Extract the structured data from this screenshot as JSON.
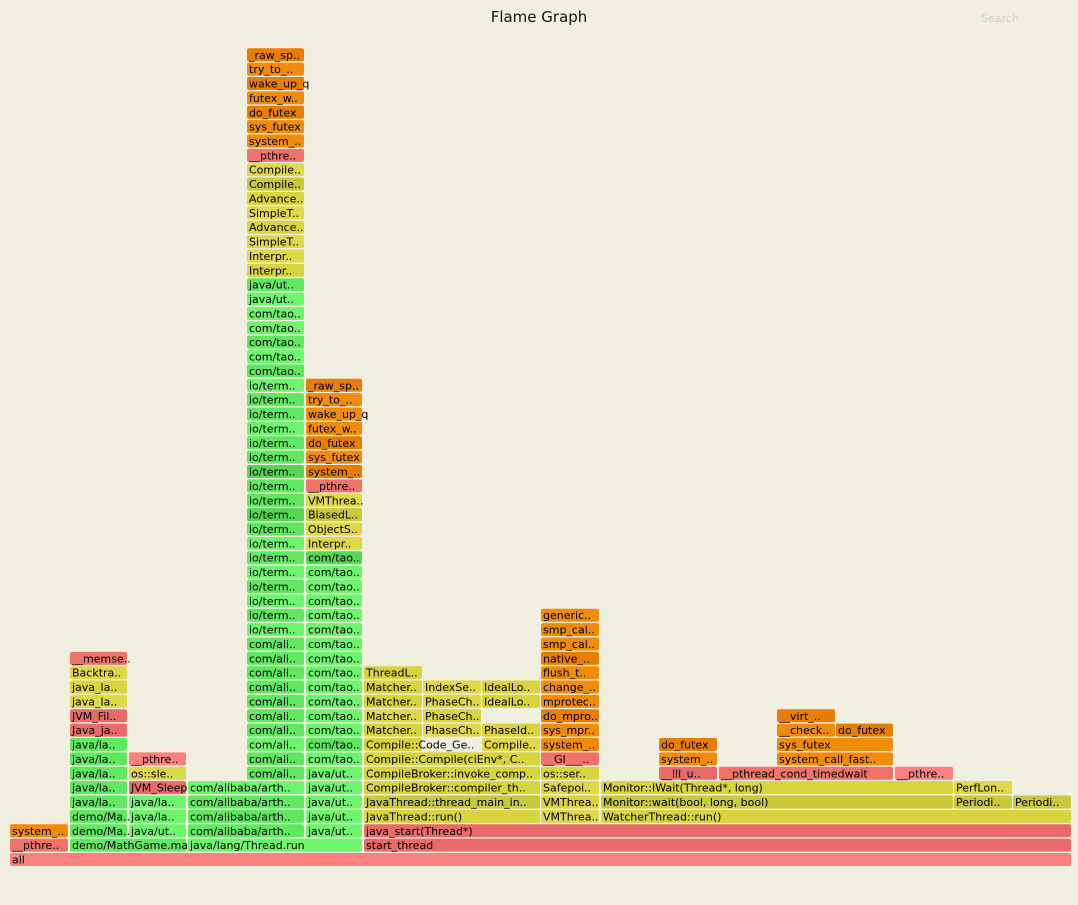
{
  "title": "Flame Graph",
  "search_label": "Search",
  "palette": {
    "red_light": "#fb8080",
    "red": "#e96a6a",
    "salmon": "#f0736a",
    "green": "#60e860",
    "green_light": "#6ef56e",
    "green_mid": "#52d852",
    "yellow": "#d8d43e",
    "yellow_light": "#dfd84a",
    "olive": "#c9c93c",
    "orange": "#f08c0a",
    "orange_dark": "#e77e00"
  },
  "chart_data": {
    "type": "flamegraph",
    "title": "Flame Graph",
    "frames": [
      {
        "label": "all",
        "c": "red_light"
      },
      {
        "label": "__pthre..",
        "c": "salmon"
      },
      {
        "label": "demo/MathGame.ma",
        "c": "green"
      },
      {
        "label": "java/lang/Thread.run",
        "c": "green_light"
      },
      {
        "label": "start_thread",
        "c": "red"
      },
      {
        "label": "system_..",
        "c": "orange"
      },
      {
        "label": "demo/Ma..",
        "c": "green"
      },
      {
        "label": "java/ut..",
        "c": "green_light"
      },
      {
        "label": "com/alibaba/arth..",
        "c": "green"
      },
      {
        "label": "java/ut..",
        "c": "green_light"
      },
      {
        "label": "java_start(Thread*)",
        "c": "red"
      },
      {
        "label": "demo/Ma..",
        "c": "green"
      },
      {
        "label": "java/la..",
        "c": "green_light"
      },
      {
        "label": "com/alibaba/arth..",
        "c": "green"
      },
      {
        "label": "java/ut..",
        "c": "green_light"
      },
      {
        "label": "JavaThread::run()",
        "c": "yellow"
      },
      {
        "label": "VMThrea..",
        "c": "yellow_light"
      },
      {
        "label": "WatcherThread::run()",
        "c": "yellow"
      },
      {
        "label": "java/la..",
        "c": "green"
      },
      {
        "label": "java/la..",
        "c": "green_light"
      },
      {
        "label": "com/alibaba/arth..",
        "c": "green"
      },
      {
        "label": "java/ut..",
        "c": "green_light"
      },
      {
        "label": "JavaThread::thread_main_in..",
        "c": "olive"
      },
      {
        "label": "VMThrea..",
        "c": "yellow"
      },
      {
        "label": "Monitor::wait(bool, long, bool)",
        "c": "olive"
      },
      {
        "label": "Periodi..",
        "c": "olive"
      },
      {
        "label": "Periodi..",
        "c": "olive"
      },
      {
        "label": "java/la..",
        "c": "green"
      },
      {
        "label": "JVM_Sleep",
        "c": "red"
      },
      {
        "label": "com/alibaba/arth..",
        "c": "green_light"
      },
      {
        "label": "java/ut..",
        "c": "green_light"
      },
      {
        "label": "CompileBroker::compiler_th..",
        "c": "yellow"
      },
      {
        "label": "Safepoi..",
        "c": "yellow_light"
      },
      {
        "label": "Monitor::IWait(Thread*, long)",
        "c": "yellow"
      },
      {
        "label": "PerfLon..",
        "c": "yellow_light"
      },
      {
        "label": "java/la..",
        "c": "green"
      },
      {
        "label": "os::sle..",
        "c": "yellow_light"
      },
      {
        "label": "com/ali..",
        "c": "green"
      },
      {
        "label": "java/ut..",
        "c": "green_light"
      },
      {
        "label": "CompileBroker::invoke_comp..",
        "c": "yellow"
      },
      {
        "label": "os::ser..",
        "c": "yellow"
      },
      {
        "label": "__lll_u..",
        "c": "red"
      },
      {
        "label": "__pthread_cond_timedwait",
        "c": "salmon"
      },
      {
        "label": "__pthre..",
        "c": "red_light"
      },
      {
        "label": "java/la..",
        "c": "green"
      },
      {
        "label": "__pthre..",
        "c": "red_light"
      },
      {
        "label": "com/ali..",
        "c": "green"
      },
      {
        "label": "com/tao..",
        "c": "green_light"
      },
      {
        "label": "Compile::Compile(ciEnv*, C..",
        "c": "yellow"
      },
      {
        "label": "__GI___..",
        "c": "salmon"
      },
      {
        "label": "system_..",
        "c": "orange"
      },
      {
        "label": "system_call_fast..",
        "c": "orange"
      },
      {
        "label": "java/la..",
        "c": "green"
      },
      {
        "label": "com/ali..",
        "c": "green_light"
      },
      {
        "label": "com/tao..",
        "c": "green"
      },
      {
        "label": "Compile::Code_Ge..",
        "c": "yellow"
      },
      {
        "label": "Compile..",
        "c": "yellow_light"
      },
      {
        "label": "system_..",
        "c": "orange"
      },
      {
        "label": "do_futex",
        "c": "orange_dark"
      },
      {
        "label": "sys_futex",
        "c": "orange"
      },
      {
        "label": "Java_ja..",
        "c": "red"
      },
      {
        "label": "com/ali..",
        "c": "green"
      },
      {
        "label": "com/tao..",
        "c": "green_light"
      },
      {
        "label": "Matcher..",
        "c": "yellow"
      },
      {
        "label": "PhaseCh..",
        "c": "yellow_light"
      },
      {
        "label": "PhaseId..",
        "c": "yellow"
      },
      {
        "label": "sys_mpr..",
        "c": "orange"
      },
      {
        "label": "__check..",
        "c": "orange"
      },
      {
        "label": "do_futex",
        "c": "orange_dark"
      },
      {
        "label": "JVM_Fil..",
        "c": "red"
      },
      {
        "label": "com/ali..",
        "c": "green"
      },
      {
        "label": "com/tao..",
        "c": "green_light"
      },
      {
        "label": "Matcher..",
        "c": "yellow_light"
      },
      {
        "label": "PhaseCh..",
        "c": "yellow"
      },
      {
        "label": "do_mpro..",
        "c": "orange_dark"
      },
      {
        "label": "__virt_..",
        "c": "orange_dark"
      },
      {
        "label": "java_la..",
        "c": "yellow_light"
      },
      {
        "label": "com/ali..",
        "c": "green"
      },
      {
        "label": "com/tao..",
        "c": "green_light"
      },
      {
        "label": "Matcher..",
        "c": "yellow"
      },
      {
        "label": "PhaseCh..",
        "c": "yellow_light"
      },
      {
        "label": "IdealLo..",
        "c": "yellow"
      },
      {
        "label": "mprotec..",
        "c": "orange"
      },
      {
        "label": "java_la..",
        "c": "yellow"
      },
      {
        "label": "com/ali..",
        "c": "green"
      },
      {
        "label": "com/tao..",
        "c": "green_light"
      },
      {
        "label": "Matcher..",
        "c": "yellow"
      },
      {
        "label": "IndexSe..",
        "c": "yellow_light"
      },
      {
        "label": "IdealLo..",
        "c": "yellow"
      },
      {
        "label": "change_..",
        "c": "orange"
      },
      {
        "label": "Backtra..",
        "c": "yellow_light"
      },
      {
        "label": "com/ali..",
        "c": "green"
      },
      {
        "label": "com/tao..",
        "c": "green_light"
      },
      {
        "label": "ThreadL..",
        "c": "yellow"
      },
      {
        "label": "flush_t..",
        "c": "orange"
      },
      {
        "label": "__memse..",
        "c": "salmon"
      },
      {
        "label": "com/ali..",
        "c": "green"
      },
      {
        "label": "com/tao..",
        "c": "green_light"
      },
      {
        "label": "native_..",
        "c": "orange_dark"
      },
      {
        "label": "com/ali..",
        "c": "green"
      },
      {
        "label": "com/tao..",
        "c": "green_light"
      },
      {
        "label": "smp_cal..",
        "c": "orange"
      },
      {
        "label": "io/term..",
        "c": "green_light"
      },
      {
        "label": "com/tao..",
        "c": "green_light"
      },
      {
        "label": "smp_cal..",
        "c": "orange"
      },
      {
        "label": "io/term..",
        "c": "green"
      },
      {
        "label": "com/tao..",
        "c": "green_light"
      },
      {
        "label": "generic..",
        "c": "orange"
      },
      {
        "label": "io/term..",
        "c": "green_light"
      },
      {
        "label": "com/tao..",
        "c": "green_light"
      },
      {
        "label": "io/term..",
        "c": "green"
      },
      {
        "label": "com/tao..",
        "c": "green_light"
      },
      {
        "label": "io/term..",
        "c": "green_light"
      },
      {
        "label": "com/tao..",
        "c": "green_light"
      },
      {
        "label": "io/term..",
        "c": "green"
      },
      {
        "label": "com/tao..",
        "c": "green_mid"
      },
      {
        "label": "io/term..",
        "c": "green_light"
      },
      {
        "label": "Interpr..",
        "c": "yellow_light"
      },
      {
        "label": "io/term..",
        "c": "green"
      },
      {
        "label": "ObjectS..",
        "c": "yellow_light"
      },
      {
        "label": "io/term..",
        "c": "green_mid"
      },
      {
        "label": "BiasedL..",
        "c": "olive"
      },
      {
        "label": "io/term..",
        "c": "green"
      },
      {
        "label": "VMThrea..",
        "c": "yellow_light"
      },
      {
        "label": "io/term..",
        "c": "green"
      },
      {
        "label": "__pthre..",
        "c": "salmon"
      },
      {
        "label": "io/term..",
        "c": "green_mid"
      },
      {
        "label": "system_..",
        "c": "orange_dark"
      },
      {
        "label": "io/term..",
        "c": "green"
      },
      {
        "label": "sys_futex",
        "c": "orange"
      },
      {
        "label": "io/term..",
        "c": "green"
      },
      {
        "label": "do_futex",
        "c": "orange_dark"
      },
      {
        "label": "io/term..",
        "c": "green_light"
      },
      {
        "label": "futex_w..",
        "c": "orange"
      },
      {
        "label": "io/term..",
        "c": "green"
      },
      {
        "label": "wake_up_q",
        "c": "orange"
      },
      {
        "label": "io/term..",
        "c": "green"
      },
      {
        "label": "try_to_..",
        "c": "orange"
      },
      {
        "label": "io/term..",
        "c": "green_light"
      },
      {
        "label": "_raw_sp..",
        "c": "orange_dark"
      },
      {
        "label": "com/tao..",
        "c": "green"
      },
      {
        "label": "com/tao..",
        "c": "green_light"
      },
      {
        "label": "com/tao..",
        "c": "green"
      },
      {
        "label": "com/tao..",
        "c": "green_light"
      },
      {
        "label": "com/tao..",
        "c": "green_light"
      },
      {
        "label": "java/ut..",
        "c": "green_light"
      },
      {
        "label": "java/ut..",
        "c": "green"
      },
      {
        "label": "Interpr..",
        "c": "yellow"
      },
      {
        "label": "Interpr..",
        "c": "yellow_light"
      },
      {
        "label": "SimpleT..",
        "c": "yellow_light"
      },
      {
        "label": "Advance..",
        "c": "yellow"
      },
      {
        "label": "SimpleT..",
        "c": "yellow_light"
      },
      {
        "label": "Advance..",
        "c": "yellow"
      },
      {
        "label": "Compile..",
        "c": "olive"
      },
      {
        "label": "Compile..",
        "c": "yellow_light"
      },
      {
        "label": "__pthre..",
        "c": "salmon"
      },
      {
        "label": "system_..",
        "c": "orange"
      },
      {
        "label": "sys_futex",
        "c": "orange"
      },
      {
        "label": "do_futex",
        "c": "orange_dark"
      },
      {
        "label": "futex_w..",
        "c": "orange"
      },
      {
        "label": "wake_up_q",
        "c": "orange_dark"
      },
      {
        "label": "try_to_..",
        "c": "orange"
      },
      {
        "label": "_raw_sp..",
        "c": "orange_dark"
      }
    ]
  }
}
